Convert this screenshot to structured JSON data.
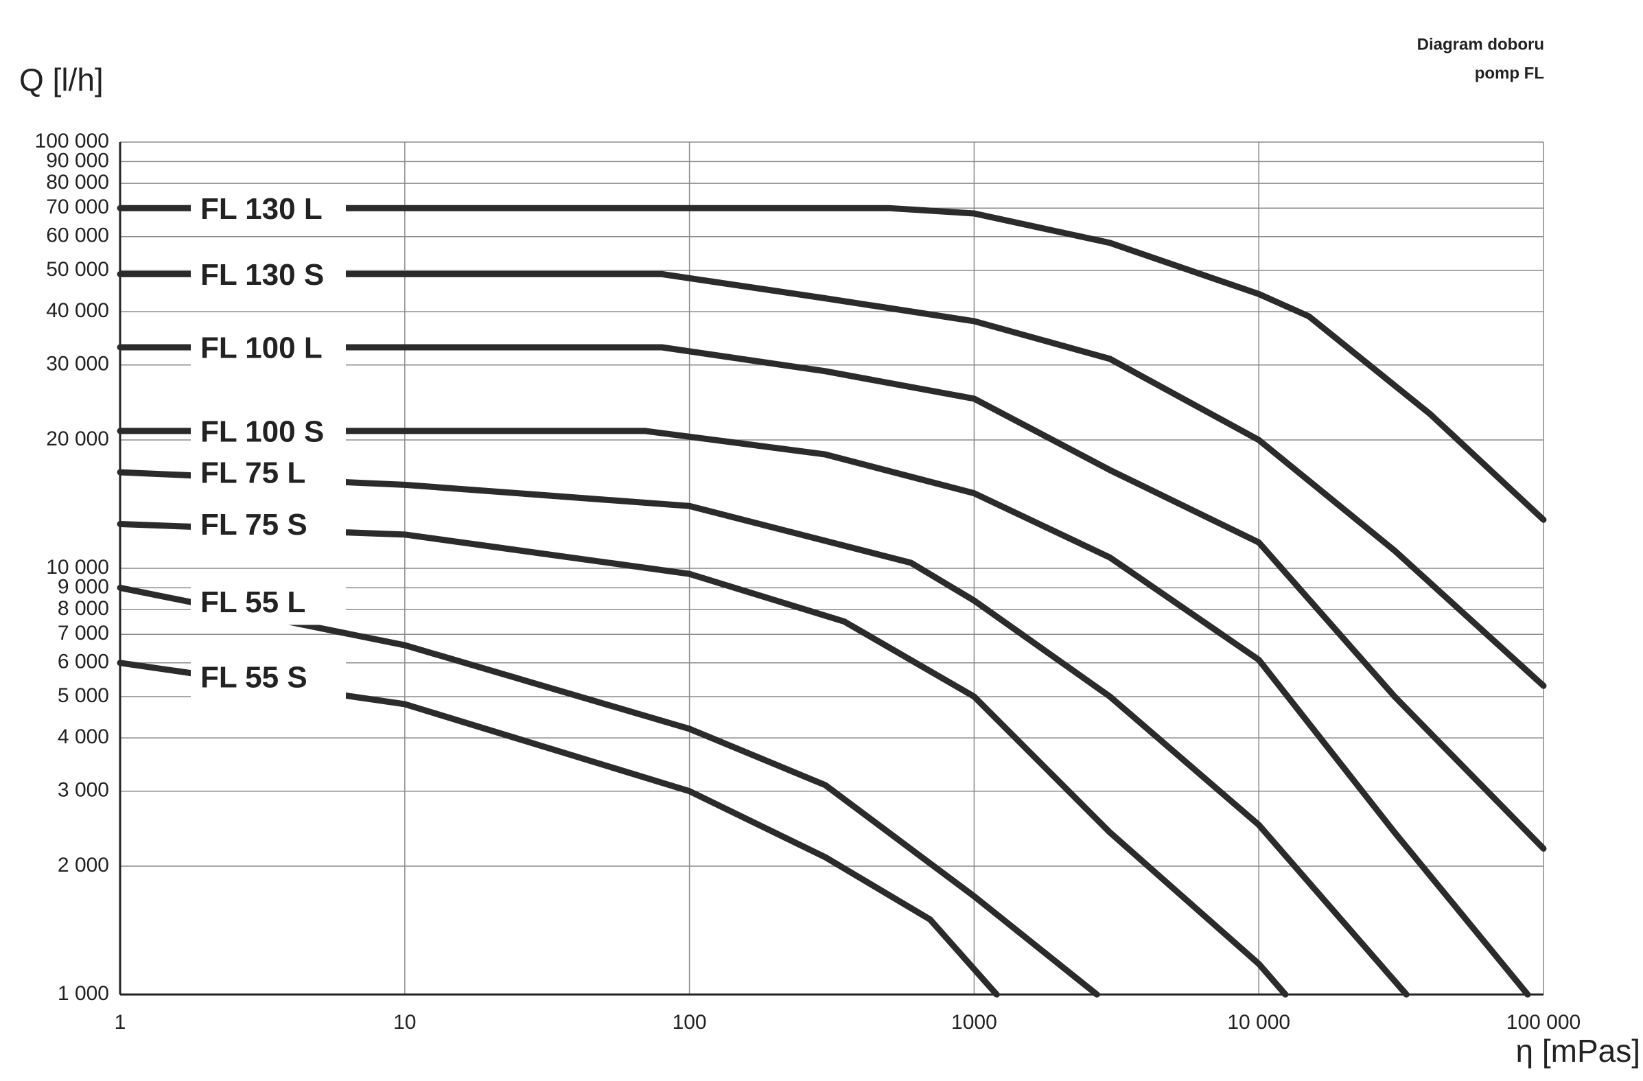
{
  "chart_data": {
    "type": "line",
    "title": "Diagram doboru",
    "subtitle": "pomp FL",
    "y_label": "Q [l/h]",
    "x_label": "η [mPas]",
    "xscale": "log",
    "yscale": "log",
    "grid": true,
    "xlim": [
      1,
      100000
    ],
    "xticks": [
      1,
      10,
      100,
      1000,
      {
        "value": 10000,
        "label": "10 000"
      },
      {
        "value": 100000,
        "label": "100 000"
      }
    ],
    "ylim": [
      1000,
      100000
    ],
    "yticks": [
      {
        "value": 1000,
        "label": "1 000"
      },
      {
        "value": 2000,
        "label": "2 000"
      },
      {
        "value": 3000,
        "label": "3 000"
      },
      {
        "value": 4000,
        "label": "4 000"
      },
      {
        "value": 5000,
        "label": "5 000"
      },
      {
        "value": 6000,
        "label": "6 000"
      },
      {
        "value": 7000,
        "label": "7 000"
      },
      {
        "value": 8000,
        "label": "8 000"
      },
      {
        "value": 9000,
        "label": "9 000"
      },
      {
        "value": 10000,
        "label": "10 000"
      },
      {
        "value": 20000,
        "label": "20 000"
      },
      {
        "value": 30000,
        "label": "30 000"
      },
      {
        "value": 40000,
        "label": "40 000"
      },
      {
        "value": 50000,
        "label": "50 000"
      },
      {
        "value": 60000,
        "label": "60 000"
      },
      {
        "value": 70000,
        "label": "70 000"
      },
      {
        "value": 80000,
        "label": "80 000"
      },
      {
        "value": 90000,
        "label": "90 000"
      },
      {
        "value": 100000,
        "label": "100 000"
      }
    ],
    "series": [
      {
        "name": "FL 130 L",
        "color": "#2b2b2b",
        "x": [
          1,
          500,
          1000,
          3000,
          10000,
          15000,
          40000,
          100000
        ],
        "values": [
          70000,
          70000,
          68000,
          58000,
          44000,
          39000,
          23000,
          13000
        ]
      },
      {
        "name": "FL 130 S",
        "color": "#2b2b2b",
        "x": [
          1,
          80,
          300,
          1000,
          3000,
          10000,
          30000,
          100000
        ],
        "values": [
          49000,
          49000,
          43000,
          38000,
          31000,
          20000,
          11000,
          5300
        ]
      },
      {
        "name": "FL 100 L",
        "color": "#2b2b2b",
        "x": [
          1,
          80,
          300,
          1000,
          3000,
          10000,
          30000,
          100000
        ],
        "values": [
          33000,
          33000,
          29000,
          25000,
          17000,
          11500,
          5000,
          2200
        ]
      },
      {
        "name": "FL 100 S",
        "color": "#2b2b2b",
        "x": [
          1,
          70,
          300,
          1000,
          3000,
          10000,
          30000,
          88000
        ],
        "values": [
          21000,
          21000,
          18500,
          15000,
          10600,
          6100,
          2400,
          1000
        ]
      },
      {
        "name": "FL 75 L",
        "color": "#2b2b2b",
        "x": [
          1,
          10,
          100,
          600,
          1000,
          3000,
          10000,
          33000
        ],
        "values": [
          16800,
          15700,
          14000,
          10300,
          8400,
          5000,
          2500,
          1000
        ]
      },
      {
        "name": "FL 75 S",
        "color": "#2b2b2b",
        "x": [
          1,
          10,
          100,
          350,
          1000,
          3000,
          10000,
          12400
        ],
        "values": [
          12700,
          12000,
          9700,
          7500,
          5000,
          2400,
          1180,
          1000
        ]
      },
      {
        "name": "FL 55 L",
        "color": "#2b2b2b",
        "x": [
          1,
          10,
          100,
          300,
          1000,
          2700
        ],
        "values": [
          9000,
          6600,
          4200,
          3100,
          1700,
          1000
        ]
      },
      {
        "name": "FL 55 S",
        "color": "#2b2b2b",
        "x": [
          1,
          10,
          100,
          300,
          700,
          1200
        ],
        "values": [
          6000,
          4800,
          3000,
          2100,
          1500,
          1000
        ]
      }
    ]
  }
}
